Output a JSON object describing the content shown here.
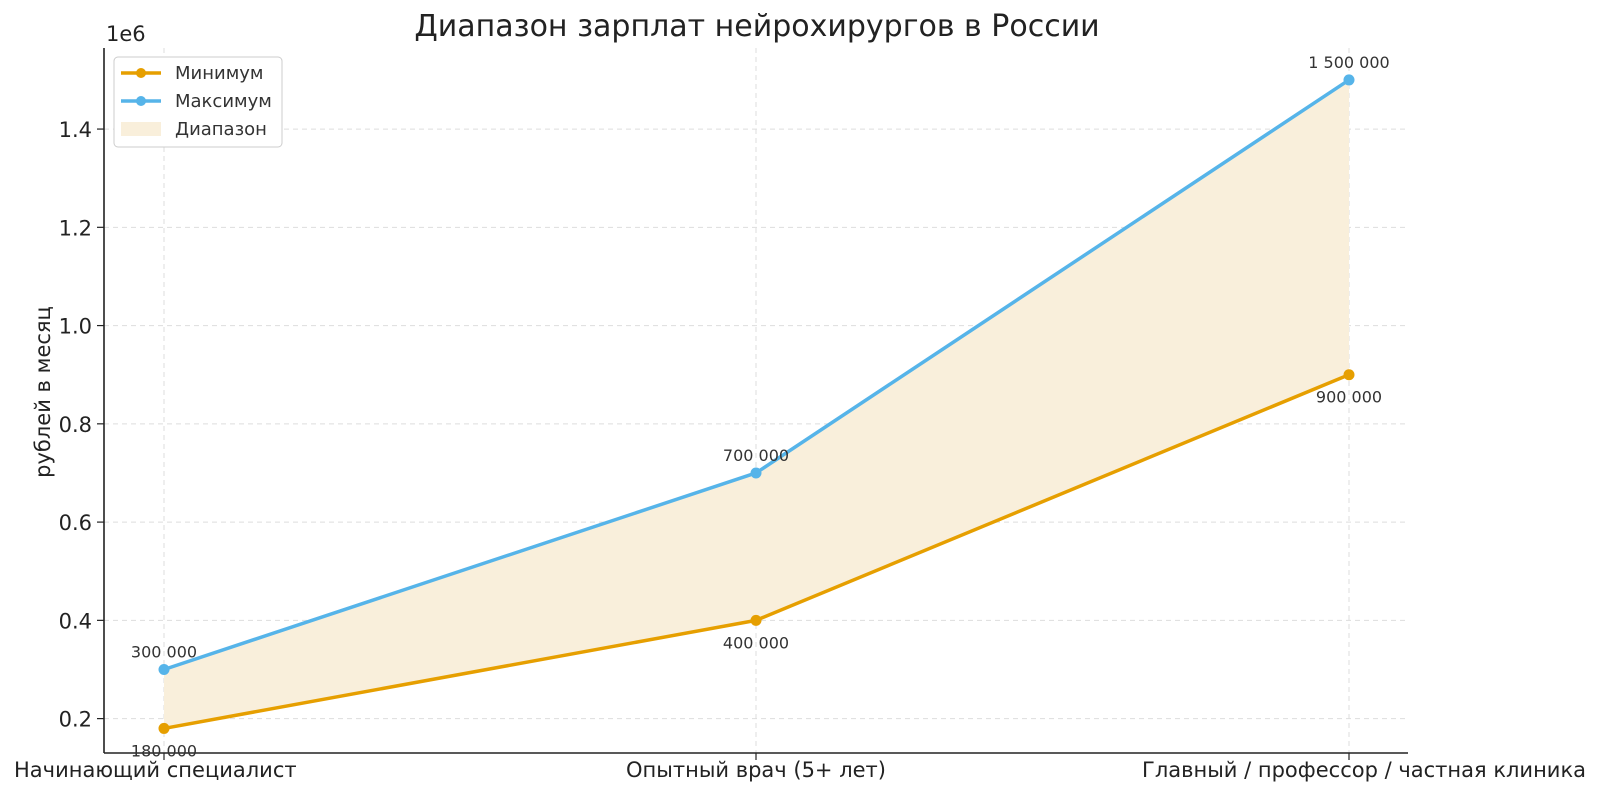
{
  "chart_data": {
    "type": "line",
    "title": "Диапазон зарплат нейрохирургов в России",
    "ylabel": "рублей в месяц",
    "xlabel": "",
    "y_offset_label": "1e6",
    "categories": [
      "Начинающий специалист",
      "Опытный врач (5+ лет)",
      "Главный / профессор / частная клиника"
    ],
    "ylim": [
      130000,
      1565000
    ],
    "yticks": [
      200000,
      400000,
      600000,
      800000,
      1000000,
      1200000,
      1400000
    ],
    "ytick_labels": [
      "0.2",
      "0.4",
      "0.6",
      "0.8",
      "1.0",
      "1.2",
      "1.4"
    ],
    "grid": true,
    "legend_position": "top-left",
    "series": [
      {
        "name": "Минимум",
        "values": [
          180000,
          400000,
          900000
        ],
        "labels": [
          "180 000",
          "400 000",
          "900 000"
        ],
        "color": "#E69F00"
      },
      {
        "name": "Максимум",
        "values": [
          300000,
          700000,
          1500000
        ],
        "labels": [
          "300 000",
          "700 000",
          "1 500 000"
        ],
        "color": "#56B4E9"
      }
    ],
    "range_band": {
      "name": "Диапазон",
      "color": "#F9EFDB"
    }
  }
}
